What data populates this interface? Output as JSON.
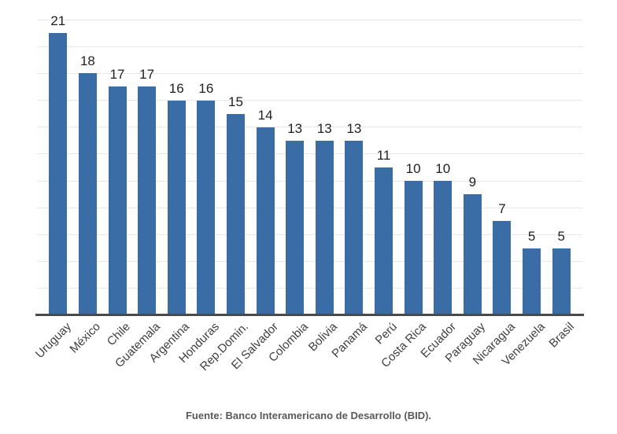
{
  "chart_data": {
    "type": "bar",
    "title": "",
    "xlabel": "",
    "ylabel": "",
    "categories": [
      "Uruguay",
      "México",
      "Chile",
      "Guatemala",
      "Argentina",
      "Honduras",
      "Rep.Domin.",
      "El Salvador",
      "Colombia",
      "Bolivia",
      "Panamá",
      "Perú",
      "Costa Rica",
      "Ecuador",
      "Paraguay",
      "Nicaragua",
      "Venezuela",
      "Brasil"
    ],
    "values": [
      21,
      18,
      17,
      17,
      16,
      16,
      15,
      14,
      13,
      13,
      13,
      11,
      10,
      10,
      9,
      7,
      5,
      5
    ],
    "ylim": [
      0,
      22
    ],
    "grid_step": 2,
    "grid": true,
    "legend": "none",
    "value_labels_shown": true,
    "bar_color": "#3A6DA5",
    "gridline_color": "#E7E7E7",
    "axis_line_color": "#4A4A4A",
    "value_label_color": "#1F1F1F",
    "category_label_color": "#3F3F3F",
    "source_color": "#58595B",
    "source": "Fuente: Banco Interamericano de Desarrollo (BID)."
  }
}
